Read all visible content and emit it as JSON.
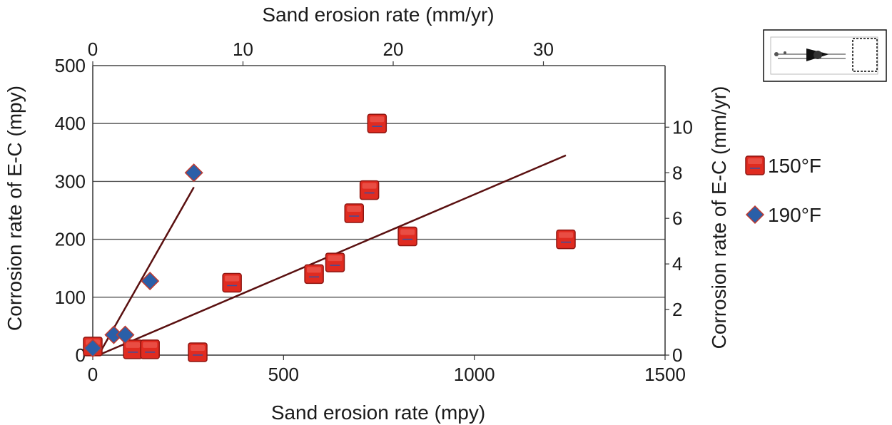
{
  "chart_data": {
    "type": "scatter",
    "x_bottom_label": "Sand erosion rate (mpy)",
    "x_top_label": "Sand erosion rate (mm/yr)",
    "y_left_label": "Corrosion rate of E-C (mpy)",
    "y_right_label": "Corrosion rate of E-C (mm/yr)",
    "x_bottom_range": [
      0,
      1500
    ],
    "x_bottom_ticks": [
      "0",
      "500",
      "1000",
      "1500"
    ],
    "x_top_range": [
      0,
      38.1
    ],
    "x_top_ticks": [
      "0",
      "10",
      "20",
      "30"
    ],
    "y_left_range": [
      0,
      500
    ],
    "y_left_ticks": [
      "0",
      "100",
      "200",
      "300",
      "400",
      "500"
    ],
    "y_right_range": [
      0,
      12.7
    ],
    "y_right_ticks": [
      "0",
      "2",
      "4",
      "6",
      "8",
      "10"
    ],
    "grid": "horizontal",
    "legend_position": "right",
    "series": [
      {
        "name": "150°F",
        "marker": "square",
        "color": "#e02b20",
        "points": [
          [
            0,
            15
          ],
          [
            105,
            10
          ],
          [
            150,
            10
          ],
          [
            275,
            5
          ],
          [
            365,
            125
          ],
          [
            580,
            140
          ],
          [
            635,
            160
          ],
          [
            685,
            245
          ],
          [
            725,
            285
          ],
          [
            745,
            400
          ],
          [
            825,
            205
          ],
          [
            1240,
            200
          ]
        ]
      },
      {
        "name": "190°F",
        "marker": "diamond",
        "color": "#2a5fa8",
        "points": [
          [
            0,
            12
          ],
          [
            55,
            35
          ],
          [
            85,
            35
          ],
          [
            150,
            128
          ],
          [
            265,
            315
          ]
        ]
      }
    ],
    "trendlines": [
      {
        "series": "150°F",
        "from": [
          15,
          0
        ],
        "to": [
          1240,
          345
        ]
      },
      {
        "series": "190°F",
        "from": [
          15,
          0
        ],
        "to": [
          265,
          290
        ]
      }
    ],
    "trendline_color": "#5a1010",
    "inset": "small magnified image of particles"
  }
}
